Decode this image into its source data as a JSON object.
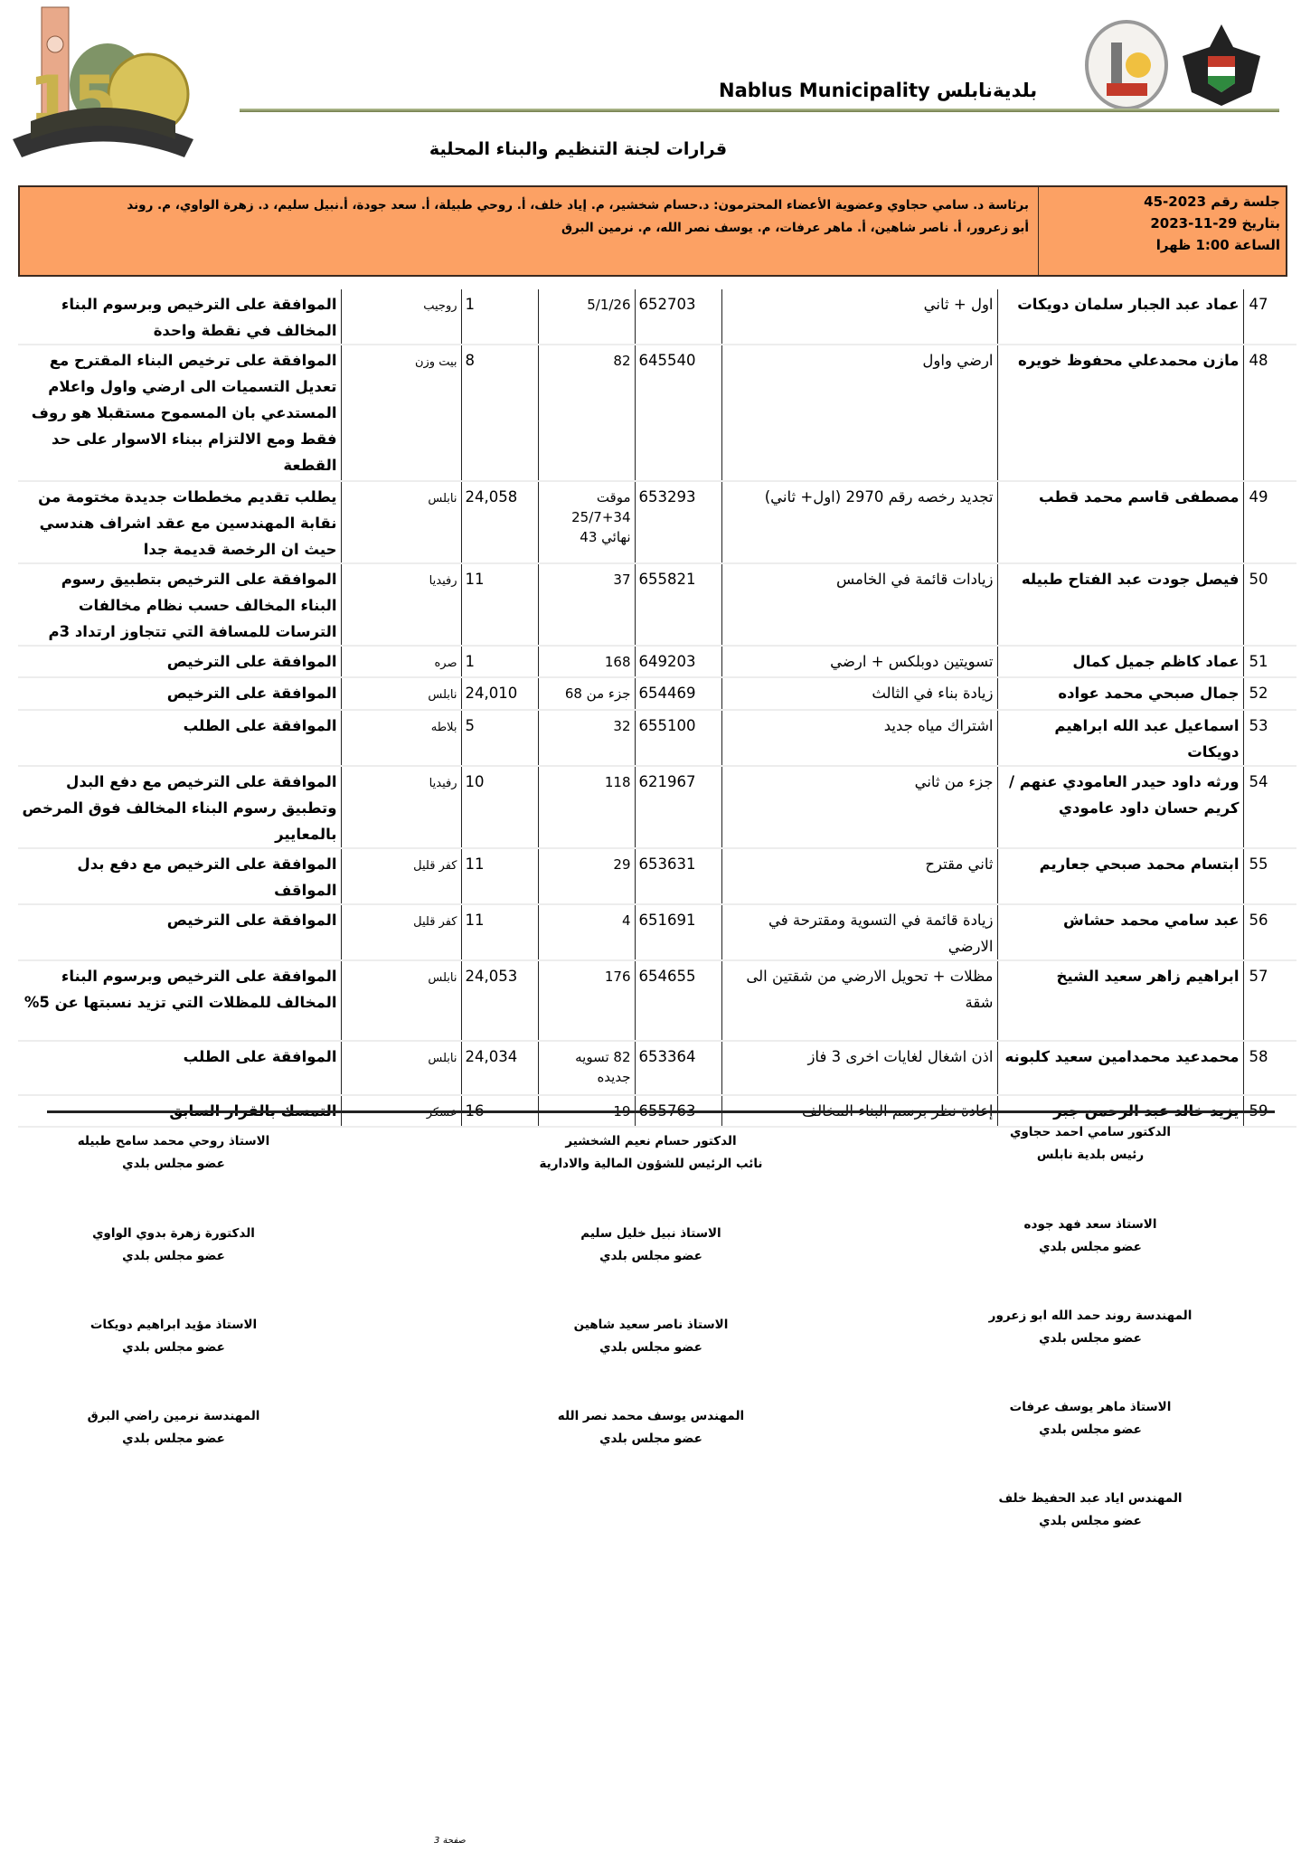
{
  "header": {
    "logo_left_text": "نابلس 150",
    "municipality_name": "Nablus Municipality بلديةنابلس",
    "title": "قرارات لجنة التنظيم والبناء المحلية"
  },
  "session": {
    "number": "جلسة رقم 2023-45",
    "date": "بتاريخ 29-11-2023",
    "time": "الساعة 1:00 ظهرا",
    "members_line1": "برئاسة د. سامي حجاوي وعضوية الأعضاء المحترمون: د.حسام شخشير، م. إياد خلف، أ. روحي طبيلة، أ. سعد جودة، أ.نبيل سليم، د. زهرة الواوي، م. روند",
    "members_line2": "أبو زعرور، أ. ناصر شاهين، أ. ماهر عرفات، م. يوسف نصر الله، م. نرمين البرق"
  },
  "rows": [
    {
      "num": "47",
      "name": "عماد عبد الجبار سلمان دويكات",
      "desc": "اول + ثاني",
      "app": "652703",
      "parcel": "5/1/26",
      "block": "1",
      "area": "روجيب",
      "decision": "الموافقة على الترخيص وبرسوم البناء المخالف في نقطة واحدة"
    },
    {
      "num": "48",
      "name": "مازن محمدعلي محفوظ خويره",
      "desc": "ارضي واول",
      "app": "645540",
      "parcel": "82",
      "block": "8",
      "area": "بيت وزن",
      "decision": "الموافقة على ترخيص البناء المقترح مع تعديل التسميات الى ارضي واول واعلام المستدعي بان المسموح مستقبلا هو روف فقط ومع الالتزام ببناء الاسوار على حد القطعة"
    },
    {
      "num": "49",
      "name": "مصطفى قاسم محمد قطب",
      "desc": "تجديد رخصه رقم 2970 (اول+ ثاني)",
      "app": "653293",
      "parcel": "موقت 34+25/7 نهائي 43",
      "block": "24,058",
      "area": "نابلس",
      "decision": "يطلب تقديم مخططات جديدة مختومة من نقابة المهندسين مع عقد اشراف هندسي حيث ان الرخصة قديمة جدا"
    },
    {
      "num": "50",
      "name": "فيصل جودت عبد الفتاح طبيله",
      "desc": "زيادات قائمة في الخامس",
      "app": "655821",
      "parcel": "37",
      "block": "11",
      "area": "رفيديا",
      "decision": "الموافقة على الترخيص بتطبيق رسوم البناء المخالف حسب نظام مخالفات الترسات للمسافة التي تتجاوز ارتداد 3م"
    },
    {
      "num": "51",
      "name": "عماد كاظم جميل كمال",
      "desc": "تسويتين دوبلكس + ارضي",
      "app": "649203",
      "parcel": "168",
      "block": "1",
      "area": "صره",
      "decision": "الموافقة على الترخيص"
    },
    {
      "num": "52",
      "name": "جمال صبحي محمد عواده",
      "desc": "زيادة بناء في الثالث",
      "app": "654469",
      "parcel": "جزء من 68",
      "block": "24,010",
      "area": "نابلس",
      "decision": "الموافقة على الترخيص"
    },
    {
      "num": "53",
      "name": "اسماعيل عبد الله ابراهيم دويكات",
      "desc": "اشتراك مياه جديد",
      "app": "655100",
      "parcel": "32",
      "block": "5",
      "area": "بلاطه",
      "decision": "الموافقة على الطلب"
    },
    {
      "num": "54",
      "name": "ورثه داود حيدر العامودي عنهم /كريم حسان داود عامودي",
      "desc": "جزء من ثاني",
      "app": "621967",
      "parcel": "118",
      "block": "10",
      "area": "رفيديا",
      "decision": "الموافقة على الترخيص مع دفع البدل وتطبيق رسوم البناء المخالف فوق المرخص بالمعايير"
    },
    {
      "num": "55",
      "name": "ابتسام محمد صبحي جعاريم",
      "desc": "ثاني مقترح",
      "app": "653631",
      "parcel": "29",
      "block": "11",
      "area": "كفر قليل",
      "decision": "الموافقة على الترخيص مع دفع بدل المواقف"
    },
    {
      "num": "56",
      "name": "عبد سامي محمد حشاش",
      "desc": "زيادة قائمة في التسوية ومقترحة في الارضي",
      "app": "651691",
      "parcel": "4",
      "block": "11",
      "area": "كفر قليل",
      "decision": "الموافقة على الترخيص"
    },
    {
      "num": "57",
      "name": "ابراهيم زاهر سعيد الشيخ",
      "desc": "مظلات + تحويل الارضي من شقتين الى شقة",
      "app": "654655",
      "parcel": "176",
      "block": "24,053",
      "area": "نابلس",
      "decision": "الموافقة على الترخيص وبرسوم البناء المخالف للمظلات التي تزيد نسبتها عن 5%"
    },
    {
      "num": "58",
      "name": "محمدعيد محمدامين سعيد كلبونه",
      "desc": "اذن اشغال لغايات اخرى 3 فاز",
      "app": "653364",
      "parcel": "82 تسويه جديده",
      "block": "24,034",
      "area": "نابلس",
      "decision": "الموافقة على الطلب"
    },
    {
      "num": "59",
      "name": "يزيد خالد عبد الرحمن جبر",
      "desc": "إعادة نظر برسم البناء المخالف",
      "app": "655763",
      "parcel": "19",
      "block": "16",
      "area": "عسكر",
      "decision": "التمسك بالقرار السابق"
    }
  ],
  "signatures": [
    {
      "name": "الدكتور سامي احمد حجاوي",
      "role": "رئيس بلدية نابلس"
    },
    {
      "name": "الدكتور حسام نعيم الشخشير",
      "role": "نائب الرئيس للشؤون المالية والادارية"
    },
    {
      "name": "الاستاذ روحي محمد سامح طبيله",
      "role": "عضو مجلس بلدي"
    },
    {
      "name": "الاستاذ سعد فهد جوده",
      "role": "عضو مجلس بلدي"
    },
    {
      "name": "الاستاذ نبيل خليل سليم",
      "role": "عضو مجلس بلدي"
    },
    {
      "name": "الدكتورة زهرة بدوي الواوي",
      "role": "عضو مجلس بلدي"
    },
    {
      "name": "المهندسة روند حمد الله ابو زعرور",
      "role": "عضو مجلس بلدي"
    },
    {
      "name": "الاستاذ ناصر سعيد شاهين",
      "role": "عضو مجلس بلدي"
    },
    {
      "name": "الاستاذ مؤيد ابراهيم دويكات",
      "role": "عضو مجلس بلدي"
    },
    {
      "name": "الاستاذ ماهر يوسف عرفات",
      "role": "عضو مجلس بلدي"
    },
    {
      "name": "المهندس يوسف محمد نصر الله",
      "role": "عضو مجلس بلدي"
    },
    {
      "name": "المهندسة نرمين راضي البرق",
      "role": "عضو مجلس بلدي"
    },
    {
      "name": "المهندس اياد عبد الحفيظ خلف",
      "role": "عضو مجلس بلدي"
    }
  ],
  "footer": {
    "page": "صفحة 3"
  },
  "colors": {
    "session_bg": "#fca164",
    "header_line": "#8a9460"
  }
}
